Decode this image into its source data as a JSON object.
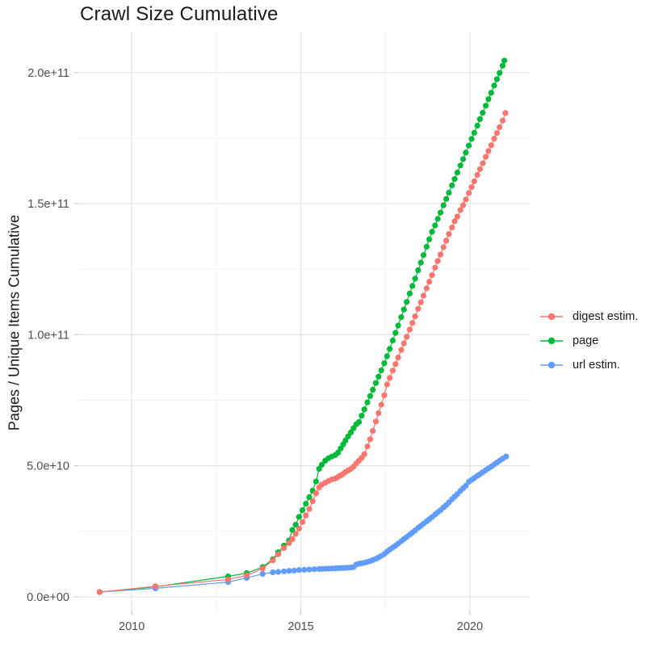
{
  "title": "Crawl Size Cumulative",
  "chart_data": {
    "type": "scatter",
    "title": "Crawl Size Cumulative",
    "xlabel": "",
    "ylabel": "Pages / Unique Items Cumulative",
    "grid": true,
    "legend_position": "right",
    "xlim": [
      2008.42,
      2021.77
    ],
    "ylim_e9": [
      -5.3,
      215.4
    ],
    "x_major_ticks": [
      {
        "value": 2010,
        "label": "2010"
      },
      {
        "value": 2015,
        "label": "2015"
      },
      {
        "value": 2020,
        "label": "2020"
      }
    ],
    "x_minor_gridlines": [
      2012.5,
      2017.5
    ],
    "y_major_ticks": [
      {
        "value_e9": 0,
        "label": "0.0e+00"
      },
      {
        "value_e9": 50,
        "label": "5.0e+10"
      },
      {
        "value_e9": 100,
        "label": "1.0e+11"
      },
      {
        "value_e9": 150,
        "label": "1.5e+11"
      },
      {
        "value_e9": 200,
        "label": "2.0e+11"
      }
    ],
    "y_minor_gridlines_e9": [
      25,
      75,
      125,
      175
    ],
    "draw_order": [
      1,
      2,
      0
    ],
    "series": [
      {
        "name": "digest estim.",
        "slug": "digest-estim",
        "color": "#F8766D",
        "points_year_value_e9": [
          [
            2009.05,
            1.8
          ],
          [
            2010.7,
            4.0
          ],
          [
            2012.85,
            6.6
          ],
          [
            2013.4,
            8.2
          ],
          [
            2013.87,
            10.8
          ],
          [
            2014.17,
            13.9
          ],
          [
            2014.33,
            16.2
          ],
          [
            2014.5,
            18.6
          ],
          [
            2014.65,
            20.5
          ],
          [
            2014.75,
            22.0
          ],
          [
            2014.85,
            24.0
          ],
          [
            2014.95,
            26.0
          ],
          [
            2015.05,
            28.5
          ],
          [
            2015.15,
            31.0
          ],
          [
            2015.25,
            33.5
          ],
          [
            2015.35,
            36.5
          ],
          [
            2015.45,
            39.5
          ],
          [
            2015.54,
            41.7
          ],
          [
            2015.62,
            42.8
          ],
          [
            2015.72,
            43.5
          ],
          [
            2015.82,
            44.2
          ],
          [
            2015.92,
            44.8
          ],
          [
            2016.02,
            45.1
          ],
          [
            2016.1,
            45.7
          ],
          [
            2016.18,
            46.3
          ],
          [
            2016.25,
            46.9
          ],
          [
            2016.32,
            47.6
          ],
          [
            2016.4,
            48.2
          ],
          [
            2016.48,
            48.8
          ],
          [
            2016.56,
            49.7
          ],
          [
            2016.64,
            50.9
          ],
          [
            2016.72,
            51.9
          ],
          [
            2016.8,
            53.0
          ],
          [
            2016.88,
            54.4
          ],
          [
            2016.97,
            57.4
          ],
          [
            2017.05,
            60.1
          ],
          [
            2017.13,
            63.3
          ],
          [
            2017.22,
            66.9
          ],
          [
            2017.3,
            70.1
          ],
          [
            2017.38,
            73.3
          ],
          [
            2017.47,
            76.9
          ],
          [
            2017.55,
            81.0
          ],
          [
            2017.63,
            83.5
          ],
          [
            2017.72,
            86.3
          ],
          [
            2017.8,
            88.8
          ],
          [
            2017.88,
            91.3
          ],
          [
            2017.97,
            94.2
          ],
          [
            2018.05,
            96.7
          ],
          [
            2018.13,
            99.2
          ],
          [
            2018.22,
            102.0
          ],
          [
            2018.3,
            104.5
          ],
          [
            2018.38,
            107.0
          ],
          [
            2018.47,
            109.9
          ],
          [
            2018.55,
            112.4
          ],
          [
            2018.63,
            114.9
          ],
          [
            2018.72,
            117.7
          ],
          [
            2018.8,
            120.2
          ],
          [
            2018.88,
            122.7
          ],
          [
            2018.97,
            125.6
          ],
          [
            2019.05,
            128.1
          ],
          [
            2019.13,
            130.6
          ],
          [
            2019.22,
            133.4
          ],
          [
            2019.3,
            135.9
          ],
          [
            2019.38,
            138.4
          ],
          [
            2019.47,
            140.9
          ],
          [
            2019.55,
            143.3
          ],
          [
            2019.63,
            145.1
          ],
          [
            2019.72,
            147.6
          ],
          [
            2019.8,
            149.4
          ],
          [
            2019.88,
            151.6
          ],
          [
            2019.97,
            154.1
          ],
          [
            2020.05,
            156.3
          ],
          [
            2020.13,
            158.5
          ],
          [
            2020.22,
            161.0
          ],
          [
            2020.3,
            163.2
          ],
          [
            2020.38,
            165.4
          ],
          [
            2020.47,
            167.9
          ],
          [
            2020.55,
            170.1
          ],
          [
            2020.63,
            172.3
          ],
          [
            2020.72,
            174.8
          ],
          [
            2020.8,
            177.0
          ],
          [
            2020.88,
            179.2
          ],
          [
            2020.97,
            181.7
          ],
          [
            2021.05,
            184.6
          ]
        ]
      },
      {
        "name": "page",
        "slug": "page",
        "color": "#00BA38",
        "points_year_value_e9": [
          [
            2009.05,
            1.8
          ],
          [
            2010.7,
            3.8
          ],
          [
            2012.85,
            7.8
          ],
          [
            2013.4,
            9.0
          ],
          [
            2013.87,
            11.3
          ],
          [
            2014.17,
            14.3
          ],
          [
            2014.33,
            17.0
          ],
          [
            2014.5,
            19.5
          ],
          [
            2014.65,
            21.5
          ],
          [
            2014.75,
            25.5
          ],
          [
            2014.85,
            27.5
          ],
          [
            2014.95,
            30.5
          ],
          [
            2015.05,
            33.0
          ],
          [
            2015.15,
            35.5
          ],
          [
            2015.25,
            38.0
          ],
          [
            2015.35,
            40.5
          ],
          [
            2015.45,
            44.0
          ],
          [
            2015.54,
            48.8
          ],
          [
            2015.62,
            50.4
          ],
          [
            2015.72,
            51.9
          ],
          [
            2015.82,
            52.9
          ],
          [
            2015.92,
            53.5
          ],
          [
            2016.02,
            54.1
          ],
          [
            2016.1,
            55.0
          ],
          [
            2016.18,
            56.6
          ],
          [
            2016.25,
            58.1
          ],
          [
            2016.32,
            59.6
          ],
          [
            2016.4,
            61.2
          ],
          [
            2016.48,
            62.7
          ],
          [
            2016.56,
            64.3
          ],
          [
            2016.64,
            65.8
          ],
          [
            2016.72,
            66.7
          ],
          [
            2016.8,
            69.1
          ],
          [
            2016.88,
            71.5
          ],
          [
            2016.97,
            74.2
          ],
          [
            2017.05,
            76.6
          ],
          [
            2017.13,
            79.0
          ],
          [
            2017.22,
            81.6
          ],
          [
            2017.3,
            84.0
          ],
          [
            2017.38,
            86.4
          ],
          [
            2017.47,
            89.1
          ],
          [
            2017.55,
            91.8
          ],
          [
            2017.63,
            94.6
          ],
          [
            2017.72,
            97.8
          ],
          [
            2017.8,
            100.7
          ],
          [
            2017.88,
            103.5
          ],
          [
            2017.97,
            106.7
          ],
          [
            2018.05,
            109.6
          ],
          [
            2018.13,
            112.5
          ],
          [
            2018.22,
            115.7
          ],
          [
            2018.3,
            118.6
          ],
          [
            2018.38,
            121.4
          ],
          [
            2018.47,
            124.6
          ],
          [
            2018.55,
            127.5
          ],
          [
            2018.63,
            130.4
          ],
          [
            2018.72,
            133.6
          ],
          [
            2018.8,
            136.4
          ],
          [
            2018.88,
            139.3
          ],
          [
            2018.97,
            141.7
          ],
          [
            2019.05,
            144.2
          ],
          [
            2019.13,
            146.6
          ],
          [
            2019.22,
            149.4
          ],
          [
            2019.3,
            151.8
          ],
          [
            2019.38,
            154.2
          ],
          [
            2019.47,
            157.0
          ],
          [
            2019.55,
            159.4
          ],
          [
            2019.63,
            161.9
          ],
          [
            2019.72,
            164.6
          ],
          [
            2019.8,
            167.0
          ],
          [
            2019.88,
            169.5
          ],
          [
            2019.97,
            172.2
          ],
          [
            2020.05,
            174.7
          ],
          [
            2020.13,
            177.1
          ],
          [
            2020.22,
            179.8
          ],
          [
            2020.3,
            182.3
          ],
          [
            2020.38,
            184.7
          ],
          [
            2020.47,
            187.4
          ],
          [
            2020.55,
            189.9
          ],
          [
            2020.63,
            192.3
          ],
          [
            2020.72,
            195.1
          ],
          [
            2020.8,
            197.5
          ],
          [
            2020.88,
            199.9
          ],
          [
            2020.97,
            202.7
          ],
          [
            2021.02,
            204.6
          ]
        ]
      },
      {
        "name": "url estim.",
        "slug": "url-estim",
        "color": "#619CFF",
        "points_year_value_e9": [
          [
            2009.05,
            1.8
          ],
          [
            2010.7,
            3.2
          ],
          [
            2012.85,
            5.6
          ],
          [
            2013.4,
            7.2
          ],
          [
            2013.87,
            8.7
          ],
          [
            2014.17,
            9.3
          ],
          [
            2014.33,
            9.5
          ],
          [
            2014.5,
            9.7
          ],
          [
            2014.65,
            9.9
          ],
          [
            2014.8,
            10.0
          ],
          [
            2014.95,
            10.2
          ],
          [
            2015.1,
            10.3
          ],
          [
            2015.25,
            10.4
          ],
          [
            2015.4,
            10.5
          ],
          [
            2015.54,
            10.6
          ],
          [
            2015.62,
            10.65
          ],
          [
            2015.72,
            10.7
          ],
          [
            2015.82,
            10.75
          ],
          [
            2015.92,
            10.8
          ],
          [
            2016.02,
            10.85
          ],
          [
            2016.1,
            10.9
          ],
          [
            2016.18,
            10.95
          ],
          [
            2016.25,
            11.0
          ],
          [
            2016.32,
            11.05
          ],
          [
            2016.4,
            11.1
          ],
          [
            2016.48,
            11.2
          ],
          [
            2016.56,
            11.3
          ],
          [
            2016.64,
            12.3
          ],
          [
            2016.72,
            12.6
          ],
          [
            2016.8,
            12.8
          ],
          [
            2016.88,
            13.0
          ],
          [
            2016.97,
            13.3
          ],
          [
            2017.05,
            13.6
          ],
          [
            2017.13,
            14.0
          ],
          [
            2017.22,
            14.5
          ],
          [
            2017.3,
            15.0
          ],
          [
            2017.38,
            15.6
          ],
          [
            2017.47,
            16.3
          ],
          [
            2017.55,
            17.2
          ],
          [
            2017.63,
            18.0
          ],
          [
            2017.72,
            18.8
          ],
          [
            2017.8,
            19.5
          ],
          [
            2017.88,
            20.3
          ],
          [
            2017.97,
            21.2
          ],
          [
            2018.05,
            22.0
          ],
          [
            2018.13,
            22.8
          ],
          [
            2018.22,
            23.7
          ],
          [
            2018.3,
            24.5
          ],
          [
            2018.38,
            25.3
          ],
          [
            2018.47,
            26.3
          ],
          [
            2018.55,
            27.1
          ],
          [
            2018.63,
            27.9
          ],
          [
            2018.72,
            28.8
          ],
          [
            2018.8,
            29.6
          ],
          [
            2018.88,
            30.4
          ],
          [
            2018.97,
            31.4
          ],
          [
            2019.05,
            32.2
          ],
          [
            2019.13,
            33.0
          ],
          [
            2019.22,
            34.1
          ],
          [
            2019.3,
            35.0
          ],
          [
            2019.38,
            36.0
          ],
          [
            2019.47,
            37.2
          ],
          [
            2019.55,
            38.2
          ],
          [
            2019.63,
            39.2
          ],
          [
            2019.72,
            40.4
          ],
          [
            2019.8,
            41.4
          ],
          [
            2019.88,
            42.4
          ],
          [
            2019.97,
            43.9
          ],
          [
            2020.05,
            44.6
          ],
          [
            2020.13,
            45.3
          ],
          [
            2020.22,
            46.1
          ],
          [
            2020.3,
            46.8
          ],
          [
            2020.38,
            47.5
          ],
          [
            2020.47,
            48.3
          ],
          [
            2020.55,
            49.0
          ],
          [
            2020.63,
            49.7
          ],
          [
            2020.72,
            50.5
          ],
          [
            2020.8,
            51.2
          ],
          [
            2020.88,
            51.9
          ],
          [
            2020.97,
            52.7
          ],
          [
            2021.07,
            53.5
          ]
        ]
      }
    ],
    "style": {
      "major_grid_color": "#E4E4E4",
      "minor_grid_color": "#F2F2F2",
      "tick_mark_color": "#C9C9C9",
      "point_radius": 3.6,
      "line_width": 1.2
    }
  }
}
